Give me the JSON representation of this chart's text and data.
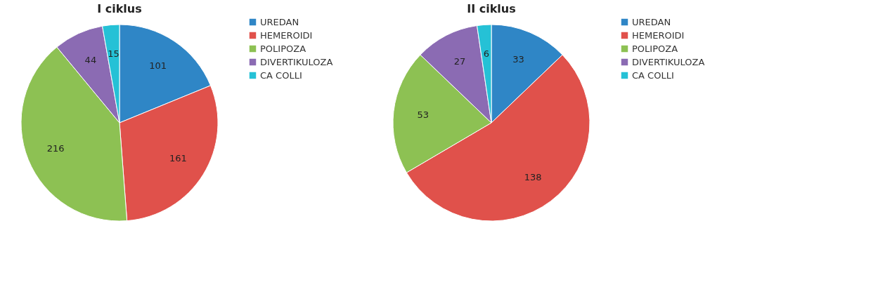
{
  "chart_data": [
    {
      "type": "pie",
      "title": "I ciklus",
      "categories": [
        "UREDAN",
        "HEMEROIDI",
        "POLIPOZA",
        "DIVERTIKULOZA",
        "CA COLLI"
      ],
      "values": [
        101,
        161,
        216,
        44,
        15
      ],
      "colors": [
        "#2f86c6",
        "#e0514b",
        "#8dc153",
        "#8b6bb3",
        "#25c1d6"
      ],
      "data_labels": true,
      "legend": "right"
    },
    {
      "type": "pie",
      "title": "II ciklus",
      "categories": [
        "UREDAN",
        "HEMEROIDI",
        "POLIPOZA",
        "DIVERTIKULOZA",
        "CA COLLI"
      ],
      "values": [
        33,
        138,
        53,
        27,
        6
      ],
      "colors": [
        "#2f86c6",
        "#e0514b",
        "#8dc153",
        "#8b6bb3",
        "#25c1d6"
      ],
      "data_labels": true,
      "legend": "right"
    }
  ]
}
